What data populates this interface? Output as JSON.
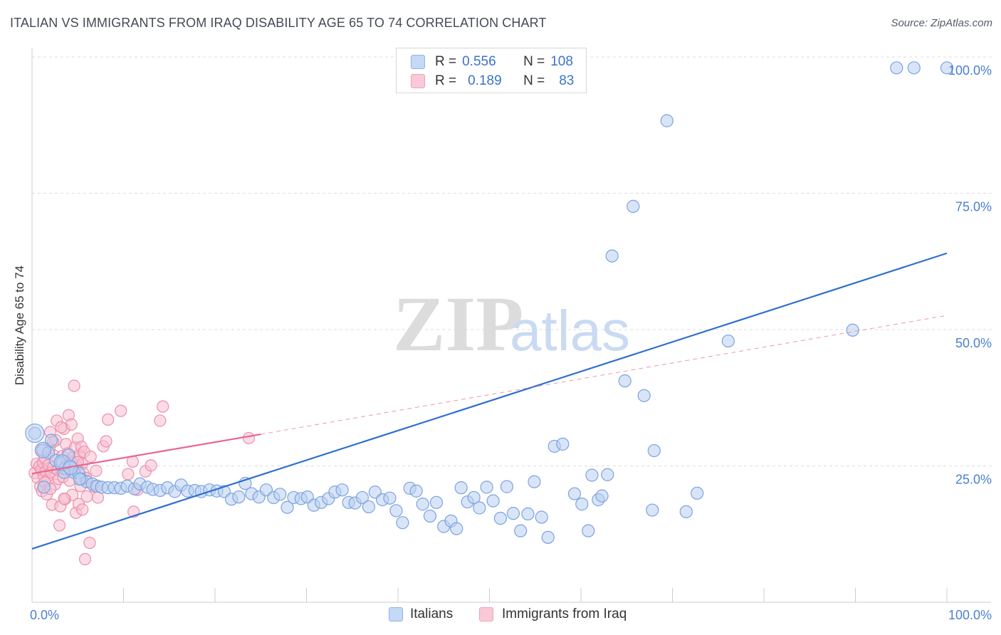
{
  "title": "ITALIAN VS IMMIGRANTS FROM IRAQ DISABILITY AGE 65 TO 74 CORRELATION CHART",
  "source": "Source: ZipAtlas.com",
  "watermark": {
    "zip": "ZIP",
    "atlas": "atlas"
  },
  "legend": {
    "r_label": "R =",
    "n_label": "N =",
    "italians": {
      "r": "0.556",
      "n": "108"
    },
    "iraq": {
      "r": "0.189",
      "n": "83"
    }
  },
  "bottom_legend": {
    "italians": "Italians",
    "iraq": "Immigrants from Iraq"
  },
  "colors": {
    "blue_fill": "#b9d0f1",
    "blue_stroke": "#7aa3e0",
    "blue_line": "#2f6fd0",
    "pink_fill": "#f7bfd0",
    "pink_stroke": "#ec8fae",
    "pink_line": "#e8668f",
    "grid": "#dcdcdc",
    "axis_text": "#4a7fd0"
  },
  "chart_data": {
    "type": "scatter",
    "ylabel": "Disability Age 65 to 74",
    "xlim": [
      0,
      100
    ],
    "ylim": [
      0,
      100
    ],
    "x_tick_labels": [
      "0.0%",
      "100.0%"
    ],
    "y_ticks": [
      {
        "value": 25,
        "label": "25.0%"
      },
      {
        "value": 50,
        "label": "50.0%"
      },
      {
        "value": 75,
        "label": "75.0%"
      },
      {
        "value": 100,
        "label": "100.0%"
      }
    ],
    "grid": "dashed horizontal",
    "series": [
      {
        "name": "Italians",
        "color": "#7aa3e0",
        "points": [
          [
            0.3,
            31.0
          ],
          [
            1.2,
            27.9
          ],
          [
            1.8,
            27.4
          ],
          [
            2.6,
            26.0
          ],
          [
            3.3,
            25.6
          ],
          [
            3.6,
            24.5
          ],
          [
            4.2,
            24.7
          ],
          [
            4.6,
            23.8
          ],
          [
            5.1,
            23.7
          ],
          [
            5.4,
            22.6
          ],
          [
            6.0,
            22.1
          ],
          [
            6.6,
            21.7
          ],
          [
            7.1,
            21.3
          ],
          [
            7.6,
            21.1
          ],
          [
            8.3,
            21.0
          ],
          [
            9.0,
            21.0
          ],
          [
            9.7,
            20.9
          ],
          [
            10.4,
            21.3
          ],
          [
            11.2,
            20.8
          ],
          [
            11.8,
            21.7
          ],
          [
            12.6,
            21.1
          ],
          [
            13.2,
            20.7
          ],
          [
            14.0,
            20.5
          ],
          [
            14.8,
            21.0
          ],
          [
            15.6,
            20.3
          ],
          [
            16.3,
            21.5
          ],
          [
            17.0,
            20.4
          ],
          [
            17.8,
            20.5
          ],
          [
            18.5,
            20.3
          ],
          [
            19.4,
            20.6
          ],
          [
            20.2,
            20.4
          ],
          [
            21.0,
            20.3
          ],
          [
            21.8,
            18.9
          ],
          [
            22.6,
            19.3
          ],
          [
            23.3,
            21.8
          ],
          [
            24.0,
            19.9
          ],
          [
            24.8,
            19.3
          ],
          [
            25.6,
            20.6
          ],
          [
            26.4,
            19.2
          ],
          [
            27.1,
            19.8
          ],
          [
            27.9,
            17.4
          ],
          [
            28.6,
            19.2
          ],
          [
            29.4,
            19.0
          ],
          [
            30.1,
            19.3
          ],
          [
            30.8,
            17.8
          ],
          [
            31.6,
            18.3
          ],
          [
            32.4,
            19.0
          ],
          [
            33.1,
            20.2
          ],
          [
            33.9,
            20.6
          ],
          [
            34.6,
            18.3
          ],
          [
            35.3,
            18.2
          ],
          [
            36.1,
            19.2
          ],
          [
            36.8,
            17.5
          ],
          [
            37.5,
            20.2
          ],
          [
            38.3,
            18.8
          ],
          [
            39.1,
            19.1
          ],
          [
            39.8,
            16.8
          ],
          [
            40.5,
            14.6
          ],
          [
            41.3,
            20.9
          ],
          [
            42.0,
            20.4
          ],
          [
            42.7,
            18.0
          ],
          [
            43.5,
            15.8
          ],
          [
            44.2,
            18.3
          ],
          [
            45.0,
            13.9
          ],
          [
            45.8,
            14.9
          ],
          [
            46.4,
            13.5
          ],
          [
            46.9,
            21.0
          ],
          [
            47.6,
            18.4
          ],
          [
            48.3,
            19.2
          ],
          [
            48.9,
            17.3
          ],
          [
            49.7,
            21.1
          ],
          [
            50.4,
            18.6
          ],
          [
            51.2,
            15.4
          ],
          [
            51.9,
            21.2
          ],
          [
            52.6,
            16.3
          ],
          [
            53.4,
            13.1
          ],
          [
            54.2,
            16.2
          ],
          [
            54.9,
            22.1
          ],
          [
            55.7,
            15.6
          ],
          [
            56.4,
            11.9
          ],
          [
            57.1,
            28.6
          ],
          [
            58.0,
            29.0
          ],
          [
            59.3,
            19.9
          ],
          [
            60.1,
            18.0
          ],
          [
            60.8,
            13.1
          ],
          [
            61.2,
            23.3
          ],
          [
            61.9,
            18.8
          ],
          [
            62.3,
            19.5
          ],
          [
            62.9,
            23.4
          ],
          [
            64.8,
            40.6
          ],
          [
            63.4,
            63.5
          ],
          [
            65.7,
            72.6
          ],
          [
            69.4,
            88.3
          ],
          [
            66.9,
            37.9
          ],
          [
            72.7,
            20.0
          ],
          [
            68.0,
            27.8
          ],
          [
            71.5,
            16.6
          ],
          [
            76.1,
            47.9
          ],
          [
            67.8,
            16.9
          ],
          [
            89.7,
            49.9
          ],
          [
            94.5,
            98.0
          ],
          [
            96.4,
            98.0
          ],
          [
            100.0,
            98.0
          ],
          [
            1.3,
            21.1
          ],
          [
            2.1,
            29.7
          ],
          [
            3.5,
            23.8
          ],
          [
            4.0,
            27.0
          ],
          [
            5.2,
            22.6
          ]
        ],
        "trend": {
          "x": [
            0,
            100
          ],
          "y": [
            9.8,
            64.0
          ]
        }
      },
      {
        "name": "Immigrants from Iraq",
        "color": "#ec8fae",
        "points": [
          [
            0.3,
            23.7
          ],
          [
            0.5,
            25.4
          ],
          [
            0.6,
            22.8
          ],
          [
            0.8,
            24.9
          ],
          [
            0.9,
            21.2
          ],
          [
            1.0,
            24.3
          ],
          [
            1.1,
            20.4
          ],
          [
            1.2,
            25.6
          ],
          [
            1.3,
            23.1
          ],
          [
            1.4,
            26.4
          ],
          [
            1.5,
            24.0
          ],
          [
            1.6,
            19.8
          ],
          [
            1.7,
            22.4
          ],
          [
            1.8,
            25.2
          ],
          [
            1.9,
            28.2
          ],
          [
            2.0,
            31.2
          ],
          [
            2.1,
            23.8
          ],
          [
            2.2,
            17.9
          ],
          [
            2.3,
            24.7
          ],
          [
            2.4,
            26.9
          ],
          [
            2.5,
            21.6
          ],
          [
            2.6,
            29.7
          ],
          [
            2.7,
            33.3
          ],
          [
            2.8,
            24.2
          ],
          [
            2.9,
            22.6
          ],
          [
            3.0,
            14.1
          ],
          [
            3.1,
            17.6
          ],
          [
            3.2,
            25.0
          ],
          [
            3.3,
            26.8
          ],
          [
            3.4,
            23.0
          ],
          [
            3.5,
            31.8
          ],
          [
            3.6,
            18.9
          ],
          [
            3.7,
            29.0
          ],
          [
            3.8,
            24.4
          ],
          [
            3.9,
            27.3
          ],
          [
            4.0,
            34.3
          ],
          [
            4.1,
            22.3
          ],
          [
            4.2,
            25.8
          ],
          [
            4.3,
            32.6
          ],
          [
            4.4,
            19.7
          ],
          [
            4.5,
            26.6
          ],
          [
            4.6,
            39.7
          ],
          [
            4.7,
            28.4
          ],
          [
            4.8,
            16.4
          ],
          [
            4.9,
            24.9
          ],
          [
            5.0,
            30.0
          ],
          [
            5.1,
            18.0
          ],
          [
            5.2,
            27.0
          ],
          [
            5.3,
            21.3
          ],
          [
            5.4,
            28.5
          ],
          [
            5.5,
            25.4
          ],
          [
            5.6,
            23.7
          ],
          [
            5.7,
            27.6
          ],
          [
            5.8,
            7.9
          ],
          [
            5.9,
            22.8
          ],
          [
            6.0,
            19.4
          ],
          [
            6.3,
            10.9
          ],
          [
            6.4,
            26.7
          ],
          [
            7.0,
            24.1
          ],
          [
            7.2,
            19.2
          ],
          [
            7.8,
            28.6
          ],
          [
            8.1,
            29.5
          ],
          [
            8.3,
            33.5
          ],
          [
            9.7,
            35.1
          ],
          [
            10.5,
            23.5
          ],
          [
            11.1,
            16.6
          ],
          [
            11.5,
            20.6
          ],
          [
            12.4,
            24.0
          ],
          [
            13.0,
            25.1
          ],
          [
            14.0,
            33.3
          ],
          [
            14.3,
            35.9
          ],
          [
            23.7,
            30.1
          ],
          [
            1.0,
            27.9
          ],
          [
            1.4,
            22.0
          ],
          [
            2.0,
            20.8
          ],
          [
            2.3,
            29.4
          ],
          [
            3.2,
            32.1
          ],
          [
            3.5,
            19.0
          ],
          [
            4.4,
            25.5
          ],
          [
            5.0,
            25.7
          ],
          [
            5.5,
            17.0
          ],
          [
            6.8,
            21.2
          ],
          [
            11.0,
            25.8
          ]
        ],
        "trend": {
          "x": [
            0,
            25
          ],
          "y": [
            23.6,
            30.8
          ]
        },
        "trend_extension": {
          "x": [
            25,
            100
          ],
          "y": [
            30.8,
            52.6
          ]
        }
      }
    ]
  }
}
